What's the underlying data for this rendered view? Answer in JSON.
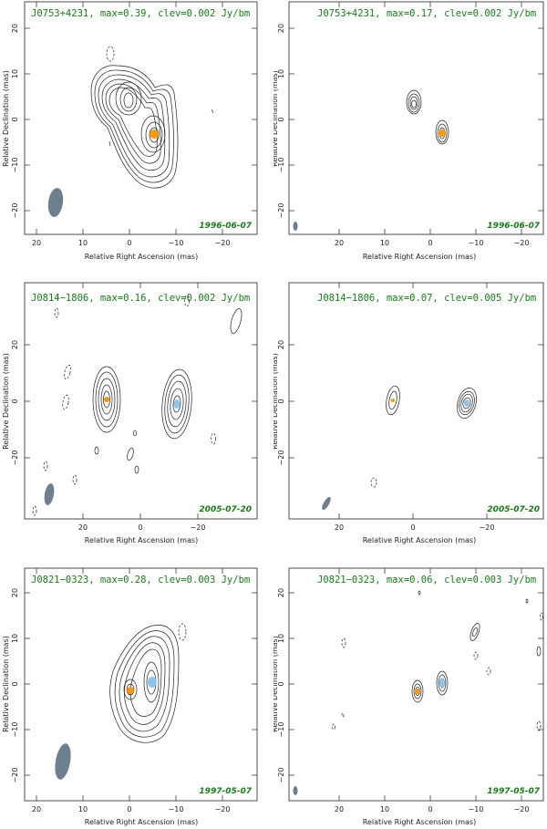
{
  "axis_labels": {
    "xlabel": "Relative Right Ascension (mas)",
    "ylabel": "Relative Declination (mas)"
  },
  "colors": {
    "title": "#1a7a1a",
    "orange_component": "#f59a0c",
    "blue_component": "#8cc4ec",
    "beam": "#6e7f8f"
  },
  "panels": [
    {
      "title": "J0753+4231, max=0.39, clev=0.002 Jy/bm",
      "date": "1996-06-07",
      "x_ticks": [
        "20",
        "10",
        "0",
        "−10",
        "−20"
      ],
      "y_ticks": [
        "20",
        "10",
        "0",
        "−10",
        "−20"
      ]
    },
    {
      "title": "J0753+4231, max=0.17, clev=0.002 Jy/bm",
      "date": "1996-06-07",
      "x_ticks": [
        "20",
        "10",
        "0",
        "−10",
        "−20"
      ],
      "y_ticks": [
        "20",
        "10",
        "0",
        "−10",
        "−20"
      ]
    },
    {
      "title": "J0814−1806, max=0.16, clev=0.002 Jy/bm",
      "date": "2005-07-20",
      "x_ticks": [
        "20",
        "0",
        "−20"
      ],
      "y_ticks": [
        "20",
        "0",
        "−20"
      ]
    },
    {
      "title": "J0814−1806, max=0.07, clev=0.005 Jy/bm",
      "date": "2005-07-20",
      "x_ticks": [
        "20",
        "0",
        "−20"
      ],
      "y_ticks": [
        "20",
        "0",
        "−20"
      ]
    },
    {
      "title": "J0821−0323, max=0.28, clev=0.003 Jy/bm",
      "date": "1997-05-07",
      "x_ticks": [
        "20",
        "10",
        "0",
        "−10",
        "−20"
      ],
      "y_ticks": [
        "20",
        "10",
        "0",
        "−10",
        "−20"
      ]
    },
    {
      "title": "J0821−0323, max=0.06, clev=0.003 Jy/bm",
      "date": "1997-05-07",
      "x_ticks": [
        "20",
        "10",
        "0",
        "−10",
        "−20"
      ],
      "y_ticks": [
        "20",
        "10",
        "0",
        "−10",
        "−20"
      ]
    }
  ]
}
